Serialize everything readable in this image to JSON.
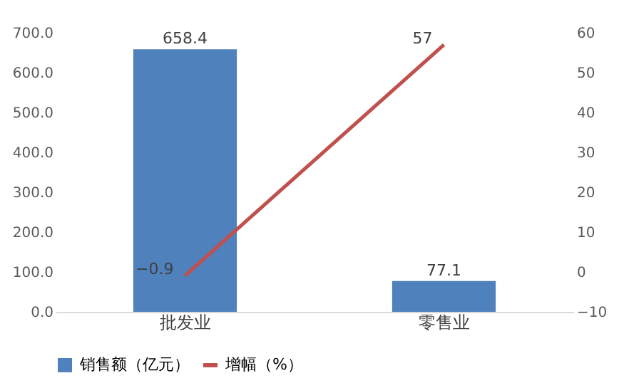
{
  "chart_data": {
    "type": "bar",
    "categories": [
      "批发业",
      "零售业"
    ],
    "series": [
      {
        "name": "销售额（亿元）",
        "color": "#4f81bd",
        "values": [
          658.4,
          77.1
        ]
      },
      {
        "name": "增幅（%）",
        "type": "line",
        "axis": "y2",
        "color": "#c0504d",
        "values": [
          -0.9,
          57
        ]
      }
    ],
    "ylim": [
      0,
      700
    ],
    "yticks": [
      {
        "value": 0,
        "label": "0.0"
      },
      {
        "value": 100,
        "label": "100.0"
      },
      {
        "value": 200,
        "label": "200.0"
      },
      {
        "value": 300,
        "label": "300.0"
      },
      {
        "value": 400,
        "label": "400.0"
      },
      {
        "value": 500,
        "label": "500.0"
      },
      {
        "value": 600,
        "label": "600.0"
      },
      {
        "value": 700,
        "label": "700.0"
      }
    ],
    "y2lim": [
      -10,
      60
    ],
    "y2ticks": [
      -10,
      0,
      10,
      20,
      30,
      40,
      50,
      60
    ],
    "data_labels": true,
    "legend": "bottom",
    "grid": false,
    "marker": "none"
  }
}
